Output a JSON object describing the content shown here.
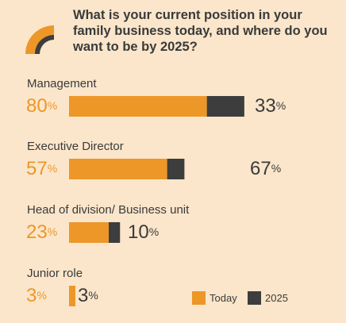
{
  "title": "What is your current position in your family business today, and where do you want to be by 2025?",
  "colors": {
    "today": "#ec9728",
    "future": "#3d3d3d",
    "background": "#fbe6cb"
  },
  "chart_data": {
    "type": "bar",
    "categories": [
      "Management",
      "Executive Director",
      "Head of division/ Business unit",
      "Junior role"
    ],
    "series": [
      {
        "name": "Today",
        "values": [
          80,
          57,
          23,
          3
        ]
      },
      {
        "name": "2025",
        "values": [
          33,
          67,
          10,
          3
        ]
      }
    ],
    "value_labels": {
      "today": [
        "80",
        "57",
        "23",
        "3"
      ],
      "future": [
        "33",
        "67",
        "10",
        "3"
      ]
    },
    "unit": "%",
    "legend": [
      "Today",
      "2025"
    ],
    "legend_position": "bottom-right"
  }
}
